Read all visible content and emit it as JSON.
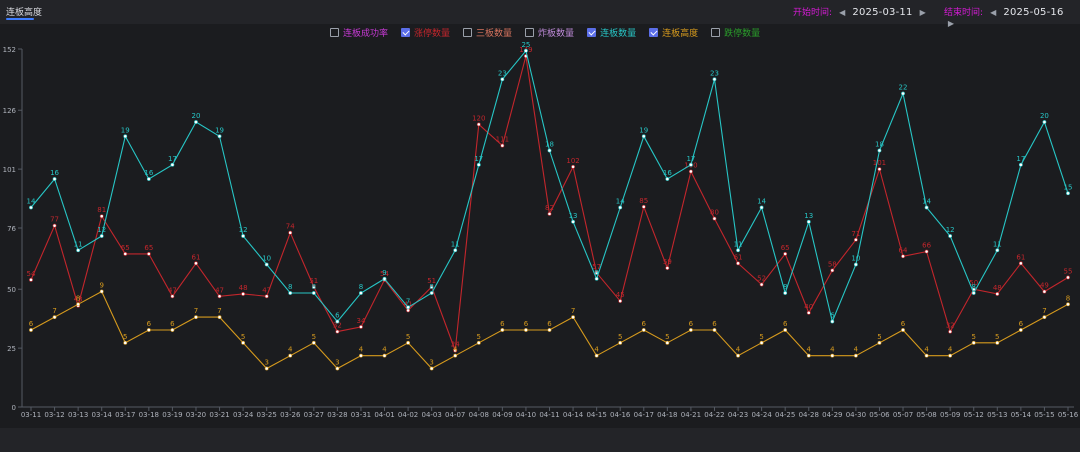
{
  "tab": {
    "label": "连板高度"
  },
  "date_range": {
    "start_label": "开始时间:",
    "start_value": "2025-03-11",
    "end_label": "结束时间:",
    "end_value": "2025-05-16"
  },
  "colors": {
    "ratio": "#c83ad6",
    "zhangting": "#c3262c",
    "sanban": "#d6735e",
    "zhaban": "#bf8bd9",
    "lianban": "#27c6c6",
    "height": "#d69a1d",
    "dieting": "#2a9d2a"
  },
  "legend": [
    {
      "key": "ratio",
      "label": "连板成功率",
      "checked": false
    },
    {
      "key": "zhangting",
      "label": "涨停数量",
      "checked": true
    },
    {
      "key": "sanban",
      "label": "三板数量",
      "checked": false
    },
    {
      "key": "zhaban",
      "label": "炸板数量",
      "checked": false
    },
    {
      "key": "lianban",
      "label": "连板数量",
      "checked": true
    },
    {
      "key": "height",
      "label": "连板高度",
      "checked": true
    },
    {
      "key": "dieting",
      "label": "跌停数量",
      "checked": false
    }
  ],
  "chart_data": {
    "type": "line",
    "categories": [
      "03-11",
      "03-12",
      "03-13",
      "03-14",
      "03-17",
      "03-18",
      "03-19",
      "03-20",
      "03-21",
      "03-24",
      "03-25",
      "03-26",
      "03-27",
      "03-28",
      "03-31",
      "04-01",
      "04-02",
      "04-03",
      "04-07",
      "04-08",
      "04-09",
      "04-10",
      "04-11",
      "04-14",
      "04-15",
      "04-16",
      "04-17",
      "04-18",
      "04-21",
      "04-22",
      "04-23",
      "04-24",
      "04-25",
      "04-28",
      "04-29",
      "04-30",
      "05-06",
      "05-07",
      "05-08",
      "05-09",
      "05-12",
      "05-13",
      "05-14",
      "05-15",
      "05-16"
    ],
    "ylim": [
      0,
      152
    ],
    "yticks": [
      0,
      25,
      50,
      76,
      101,
      126,
      152
    ],
    "grid": false,
    "legend_position": "top",
    "series": [
      {
        "name": "涨停数量",
        "key": "zhangting",
        "scale": 1,
        "values": [
          54,
          77,
          43,
          81,
          65,
          65,
          47,
          61,
          47,
          48,
          47,
          74,
          51,
          32,
          34,
          54,
          41,
          51,
          24,
          120,
          111,
          149,
          82,
          102,
          57,
          45,
          85,
          59,
          100,
          80,
          61,
          52,
          65,
          40,
          58,
          71,
          101,
          64,
          66,
          32,
          50,
          48,
          61,
          49,
          55
        ]
      },
      {
        "name": "连板数量",
        "key": "lianban",
        "scale": 6.05,
        "values": [
          14,
          16,
          11,
          12,
          19,
          16,
          17,
          20,
          19,
          12,
          10,
          8,
          8,
          6,
          8,
          9,
          7,
          8,
          11,
          17,
          23,
          25,
          18,
          13,
          9,
          14,
          19,
          16,
          17,
          23,
          11,
          14,
          8,
          13,
          6,
          10,
          18,
          22,
          14,
          12,
          8,
          11,
          17,
          20,
          15
        ]
      },
      {
        "name": "连板高度",
        "key": "height",
        "scale": 5.45,
        "values": [
          6,
          7,
          8,
          9,
          5,
          6,
          6,
          7,
          7,
          5,
          3,
          4,
          5,
          3,
          4,
          4,
          5,
          3,
          4,
          5,
          6,
          6,
          6,
          7,
          4,
          5,
          6,
          5,
          6,
          6,
          4,
          5,
          6,
          4,
          4,
          4,
          5,
          6,
          4,
          4,
          5,
          5,
          6,
          7,
          8
        ]
      }
    ]
  }
}
